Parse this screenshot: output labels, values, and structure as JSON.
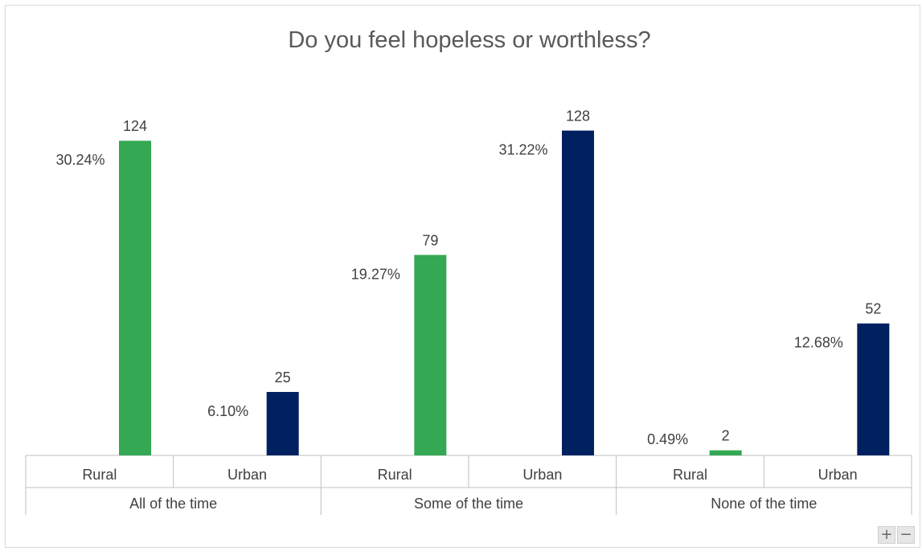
{
  "chart_data": {
    "type": "bar",
    "title": "Do you feel hopeless or worthless?",
    "groups": [
      "All of the time",
      "Some of the time",
      "None of the time"
    ],
    "categories": [
      "Rural",
      "Urban",
      "Rural",
      "Urban",
      "Rural",
      "Urban"
    ],
    "values": [
      124,
      25,
      79,
      128,
      2,
      52
    ],
    "percent_labels": [
      "30.24%",
      "6.10%",
      "19.27%",
      "31.22%",
      "0.49%",
      "12.68%"
    ],
    "bar_colors": [
      "#34a853",
      "#002060",
      "#34a853",
      "#002060",
      "#34a853",
      "#002060"
    ],
    "ylim": [
      0,
      138
    ],
    "xlabel": "",
    "ylabel": "",
    "grid": false,
    "legend": "none"
  },
  "controls": {
    "zoom_in_label": "+",
    "zoom_out_label": "−"
  }
}
